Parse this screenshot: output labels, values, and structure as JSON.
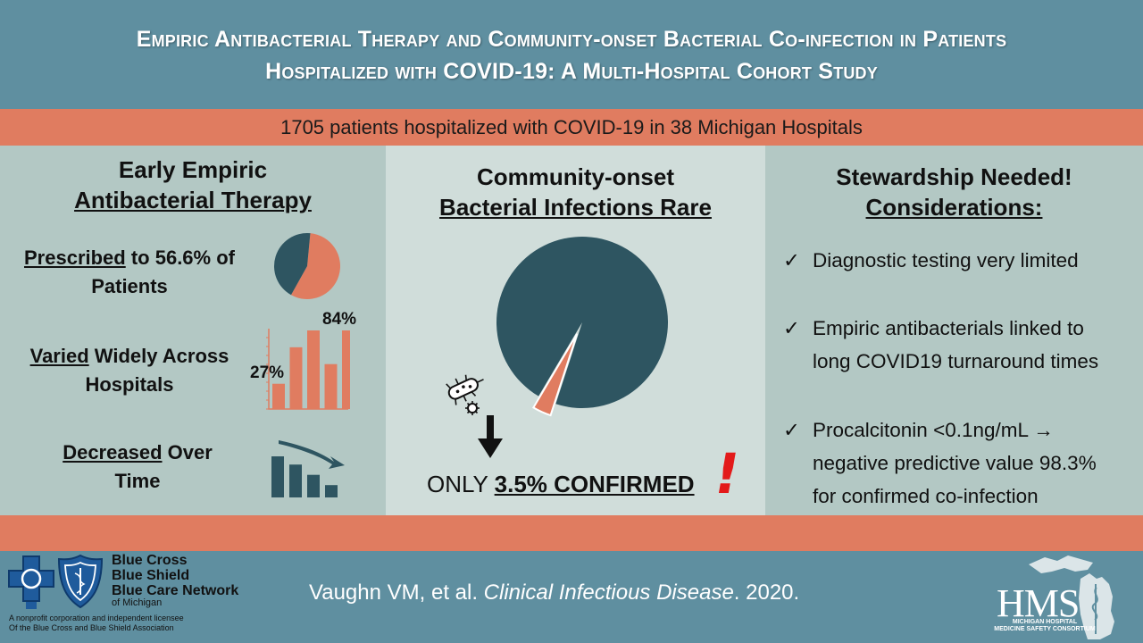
{
  "header": {
    "title_line1": "Empiric Antibacterial Therapy and Community-onset Bacterial Co-infection in Patients",
    "title_line2": "Hospitalized with COVID-19: A Multi-Hospital Cohort Study"
  },
  "banner": {
    "text": "1705 patients hospitalized with COVID-19 in 38 Michigan Hospitals"
  },
  "panel1": {
    "heading_line1": "Early Empiric",
    "heading_line2": "Antibacterial Therapy",
    "stat1_emph": "Prescribed",
    "stat1_rest": " to 56.6% of",
    "stat1_line2": "Patients",
    "stat2_emph": "Varied",
    "stat2_rest": " Widely Across",
    "stat2_line2": "Hospitals",
    "bar_low_label": "27%",
    "bar_high_label": "84%",
    "stat3_emph": "Decreased",
    "stat3_rest": " Over",
    "stat3_line2": "Time"
  },
  "panel2": {
    "heading_line1": "Community-onset",
    "heading_line2": "Bacterial Infections Rare",
    "confirmed_prefix": "ONLY ",
    "confirmed_value": "3.5% CONFIRMED",
    "exclamation": "!"
  },
  "panel3": {
    "heading_line1": "Stewardship Needed!",
    "heading_line2": "Considerations:",
    "check_glyph": "✓",
    "items": [
      {
        "line1": "Diagnostic testing very limited",
        "line2": "",
        "line3": ""
      },
      {
        "line1": "Empiric antibacterials linked to",
        "line2": "long COVID19 turnaround times",
        "line3": ""
      },
      {
        "line1": "Procalcitonin <0.1ng/mL →",
        "line2": "negative predictive value 98.3%",
        "line3": "for confirmed co-infection"
      }
    ]
  },
  "footer": {
    "citation_authors": "Vaughn VM, et al. ",
    "citation_journal": "Clinical Infectious Disease",
    "citation_year": ". 2020.",
    "bcbs_line1": "Blue Cross",
    "bcbs_line2": "Blue Shield",
    "bcbs_line3": "Blue Care Network",
    "bcbs_line4": "of Michigan",
    "bcbs_note1": "A nonprofit corporation and independent licensee",
    "bcbs_note2": "Of the Blue Cross and Blue Shield Association",
    "hms_logo": "HMS",
    "hms_sub1": "MICHIGAN HOSPITAL",
    "hms_sub2": "MEDICINE SAFETY CONSORTIUM"
  },
  "chart_data": [
    {
      "type": "pie",
      "categories": [
        "Prescribed",
        "Not prescribed"
      ],
      "values": [
        56.6,
        43.4
      ],
      "colors": [
        "#e07c60",
        "#2e5561"
      ]
    },
    {
      "type": "bar",
      "categories": [
        "",
        "",
        "",
        "",
        ""
      ],
      "values": [
        27,
        66,
        84,
        48,
        84
      ],
      "colors": [
        "#e07c60"
      ]
    },
    {
      "type": "bar",
      "categories": [
        "",
        "",
        "",
        ""
      ],
      "values": [
        100,
        80,
        55,
        30
      ],
      "colors": [
        "#2e5561"
      ]
    },
    {
      "type": "pie",
      "categories": [
        "Confirmed co-infection",
        "Not confirmed"
      ],
      "values": [
        3.5,
        96.5
      ],
      "colors": [
        "#e07c60",
        "#2e5561"
      ]
    }
  ],
  "colors": {
    "teal_header": "#5f8fa0",
    "salmon": "#e07c60",
    "dark_teal": "#2e5561",
    "panel_light": "#d0ddda",
    "panel_mid": "#b3c8c4",
    "alert_red": "#e31a1a"
  }
}
